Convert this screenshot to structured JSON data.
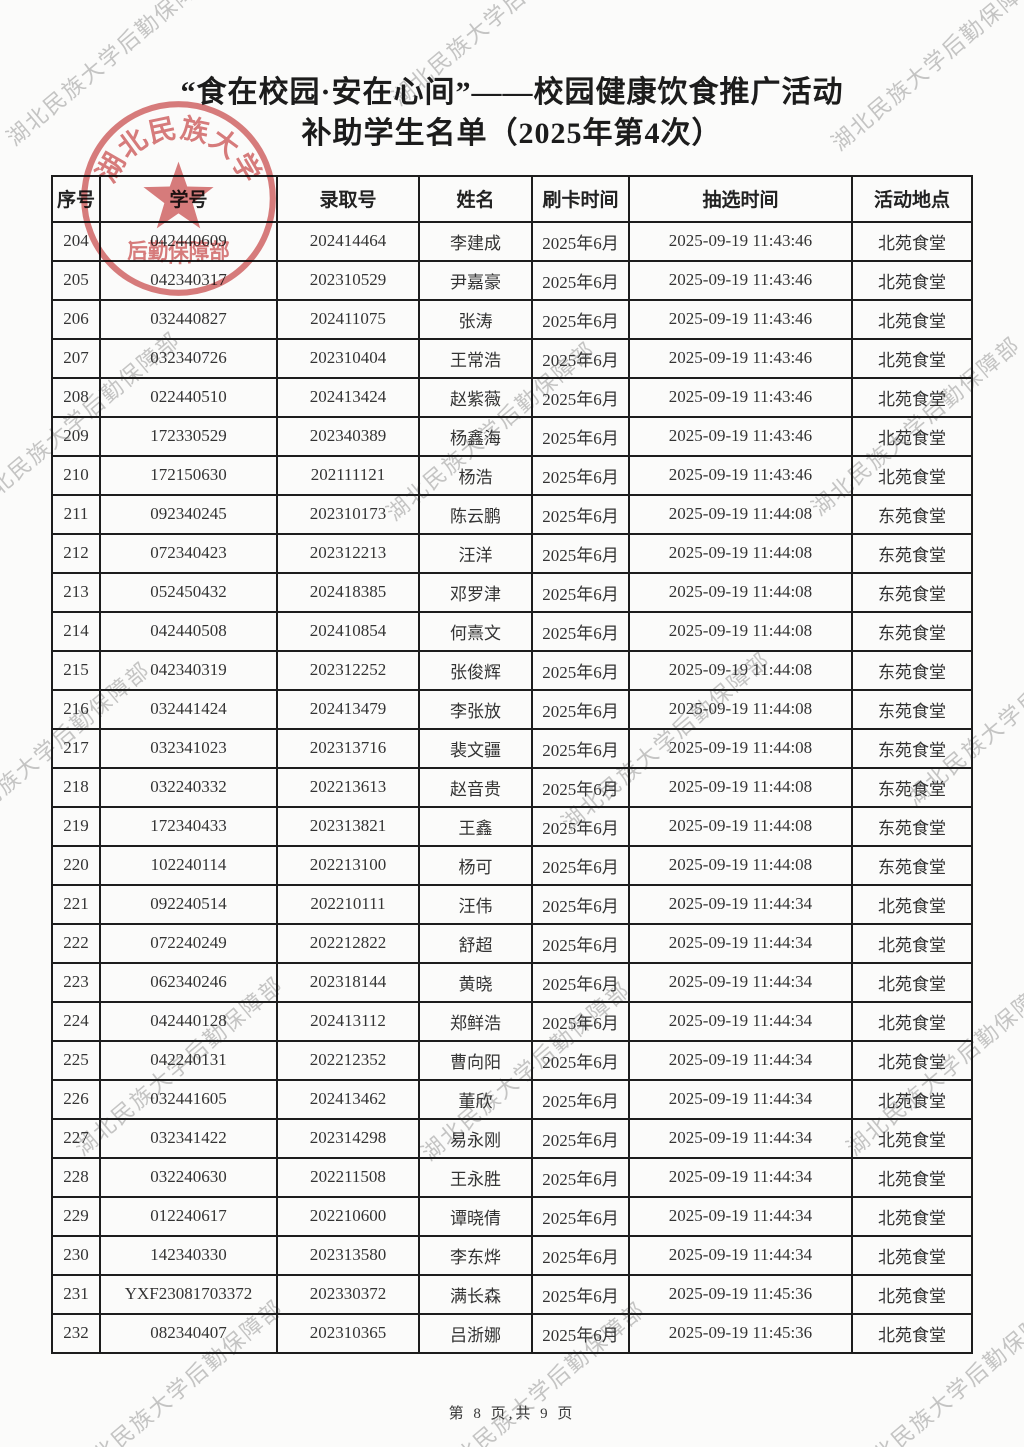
{
  "title": {
    "line1": "“食在校园·安在心间”——校园健康饮食推广活动",
    "line2": "补助学生名单（2025年第4次）"
  },
  "watermark": {
    "text": "湖北民族大学后勤保障部",
    "color": "#a3a3a3"
  },
  "seal": {
    "university": "湖北民族大学",
    "department": "后勤保障部",
    "color": "#d26060"
  },
  "table": {
    "headers": [
      "序号",
      "学号",
      "录取号",
      "姓名",
      "刷卡时间",
      "抽选时间",
      "活动地点"
    ],
    "rows": [
      [
        "204",
        "042440609",
        "202414464",
        "李建成",
        "2025年6月",
        "2025-09-19 11:43:46",
        "北苑食堂"
      ],
      [
        "205",
        "042340317",
        "202310529",
        "尹嘉豪",
        "2025年6月",
        "2025-09-19 11:43:46",
        "北苑食堂"
      ],
      [
        "206",
        "032440827",
        "202411075",
        "张涛",
        "2025年6月",
        "2025-09-19 11:43:46",
        "北苑食堂"
      ],
      [
        "207",
        "032340726",
        "202310404",
        "王常浩",
        "2025年6月",
        "2025-09-19 11:43:46",
        "北苑食堂"
      ],
      [
        "208",
        "022440510",
        "202413424",
        "赵紫薇",
        "2025年6月",
        "2025-09-19 11:43:46",
        "北苑食堂"
      ],
      [
        "209",
        "172330529",
        "202340389",
        "杨鑫海",
        "2025年6月",
        "2025-09-19 11:43:46",
        "北苑食堂"
      ],
      [
        "210",
        "172150630",
        "202111121",
        "杨浩",
        "2025年6月",
        "2025-09-19 11:43:46",
        "北苑食堂"
      ],
      [
        "211",
        "092340245",
        "202310173",
        "陈云鹏",
        "2025年6月",
        "2025-09-19 11:44:08",
        "东苑食堂"
      ],
      [
        "212",
        "072340423",
        "202312213",
        "汪洋",
        "2025年6月",
        "2025-09-19 11:44:08",
        "东苑食堂"
      ],
      [
        "213",
        "052450432",
        "202418385",
        "邓罗津",
        "2025年6月",
        "2025-09-19 11:44:08",
        "东苑食堂"
      ],
      [
        "214",
        "042440508",
        "202410854",
        "何熹文",
        "2025年6月",
        "2025-09-19 11:44:08",
        "东苑食堂"
      ],
      [
        "215",
        "042340319",
        "202312252",
        "张俊辉",
        "2025年6月",
        "2025-09-19 11:44:08",
        "东苑食堂"
      ],
      [
        "216",
        "032441424",
        "202413479",
        "李张放",
        "2025年6月",
        "2025-09-19 11:44:08",
        "东苑食堂"
      ],
      [
        "217",
        "032341023",
        "202313716",
        "裴文疆",
        "2025年6月",
        "2025-09-19 11:44:08",
        "东苑食堂"
      ],
      [
        "218",
        "032240332",
        "202213613",
        "赵音贵",
        "2025年6月",
        "2025-09-19 11:44:08",
        "东苑食堂"
      ],
      [
        "219",
        "172340433",
        "202313821",
        "王鑫",
        "2025年6月",
        "2025-09-19 11:44:08",
        "东苑食堂"
      ],
      [
        "220",
        "102240114",
        "202213100",
        "杨可",
        "2025年6月",
        "2025-09-19 11:44:08",
        "东苑食堂"
      ],
      [
        "221",
        "092240514",
        "202210111",
        "汪伟",
        "2025年6月",
        "2025-09-19 11:44:34",
        "北苑食堂"
      ],
      [
        "222",
        "072240249",
        "202212822",
        "舒超",
        "2025年6月",
        "2025-09-19 11:44:34",
        "北苑食堂"
      ],
      [
        "223",
        "062340246",
        "202318144",
        "黄晓",
        "2025年6月",
        "2025-09-19 11:44:34",
        "北苑食堂"
      ],
      [
        "224",
        "042440128",
        "202413112",
        "郑鲜浩",
        "2025年6月",
        "2025-09-19 11:44:34",
        "北苑食堂"
      ],
      [
        "225",
        "042240131",
        "202212352",
        "曹向阳",
        "2025年6月",
        "2025-09-19 11:44:34",
        "北苑食堂"
      ],
      [
        "226",
        "032441605",
        "202413462",
        "董欣",
        "2025年6月",
        "2025-09-19 11:44:34",
        "北苑食堂"
      ],
      [
        "227",
        "032341422",
        "202314298",
        "易永刚",
        "2025年6月",
        "2025-09-19 11:44:34",
        "北苑食堂"
      ],
      [
        "228",
        "032240630",
        "202211508",
        "王永胜",
        "2025年6月",
        "2025-09-19 11:44:34",
        "北苑食堂"
      ],
      [
        "229",
        "012240617",
        "202210600",
        "谭晓倩",
        "2025年6月",
        "2025-09-19 11:44:34",
        "北苑食堂"
      ],
      [
        "230",
        "142340330",
        "202313580",
        "李东烨",
        "2025年6月",
        "2025-09-19 11:44:34",
        "北苑食堂"
      ],
      [
        "231",
        "YXF23081703372",
        "202330372",
        "满长森",
        "2025年6月",
        "2025-09-19 11:45:36",
        "北苑食堂"
      ],
      [
        "232",
        "082340407",
        "202310365",
        "吕浙娜",
        "2025年6月",
        "2025-09-19 11:45:36",
        "北苑食堂"
      ]
    ]
  },
  "footer": {
    "text": "第 8 页,共 9 页",
    "page": "8",
    "total_pages": "9"
  }
}
